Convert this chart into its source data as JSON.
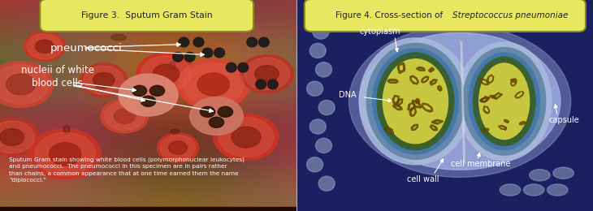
{
  "fig_width": 7.3,
  "fig_height": 2.6,
  "dpi": 100,
  "left_panel": {
    "bg_color": "#8b4a3a",
    "title": "Figure 3.  Sputum Gram Stain",
    "title_box_facecolor": "#e8e860",
    "title_box_edgecolor": "#888820",
    "title_text_color": "#222222",
    "label1": "pneumococci",
    "label2": "nucleii of white\nblood cells",
    "caption_line1": "Sputum Gram stain showing white blood cells (polymorphonuclear leukocytes)",
    "caption_line2": "and pneumococci.  The pneumococci in this specimen are in pairs rather",
    "caption_line3": "than chains, a common appearance that at one time earned them the name",
    "caption_line4": "\"diplococci.\"",
    "caption_color": "#ffffff",
    "label_color": "#ffffff",
    "arrow_color": "#ffffff"
  },
  "right_panel": {
    "bg_color": "#1a2060",
    "title_plain": "Figure 4. Cross-section of ",
    "title_italic": "Streptococcus pneumoniae",
    "title_box_facecolor": "#e8e860",
    "title_box_edgecolor": "#888820",
    "title_text_color": "#222222",
    "label_cytoplasm": "cytoplasm",
    "label_dna": "DNA",
    "label_cellwall": "cell wall",
    "label_membrane": "cell membrane",
    "label_capsule": "capsule",
    "label_color": "#ffffff",
    "arrow_color": "#ffffff",
    "capsule_outer_color": "#8899cc",
    "capsule_color": "#aabbee",
    "cellwall_color": "#6688aa",
    "membrane_color": "#4477aa",
    "cytoplasm_color": "#3a6030",
    "dna_color": "#cccc44",
    "dna_strand_color": "#664400",
    "divider_color": "#dddddd",
    "background_blob_color": "#7788aa"
  },
  "border_color": "#888888"
}
